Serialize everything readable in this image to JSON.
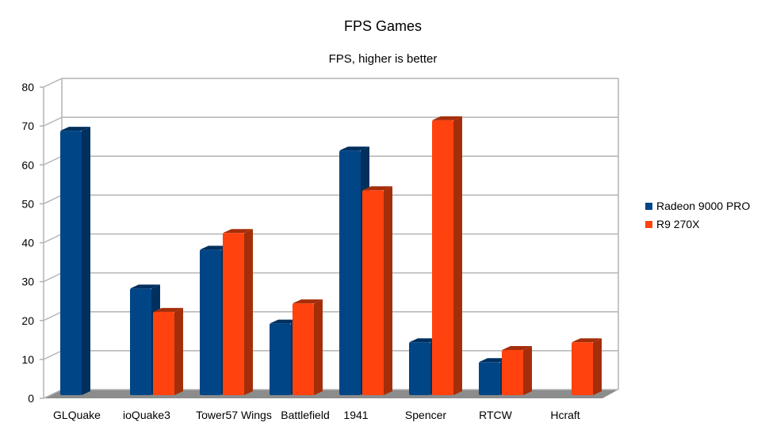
{
  "chart_data": {
    "type": "bar",
    "title": "FPS Games",
    "subtitle": "FPS, higher is better",
    "xlabel": "",
    "ylabel": "",
    "ylim": [
      0,
      80
    ],
    "yticks": [
      0,
      10,
      20,
      30,
      40,
      50,
      60,
      70,
      80
    ],
    "grid": true,
    "legend_position": "right",
    "categories": [
      "GLQuake",
      "ioQuake3",
      "Tower57 Wings",
      "Battlefield",
      "1941",
      "Spencer",
      "RTCW",
      "Hcraft"
    ],
    "series": [
      {
        "name": "Radeon 9000 PRO",
        "color": "#004586",
        "side_color": "#00305e",
        "values": [
          67.6,
          27,
          37,
          18,
          62.5,
          13.2,
          8.1,
          null
        ]
      },
      {
        "name": "R9 270X",
        "color": "#ff420e",
        "side_color": "#a52e0a",
        "values": [
          null,
          21,
          41.3,
          23.2,
          52.3,
          70.3,
          11.2,
          13.2
        ]
      }
    ]
  }
}
